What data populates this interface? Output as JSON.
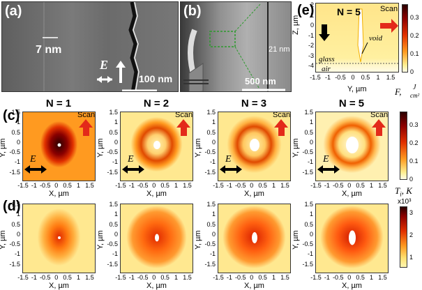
{
  "panel_a": {
    "label": "(a)",
    "scale_gap": "7 nm",
    "scalebar": "100 nm",
    "field_symbol": "E"
  },
  "panel_b": {
    "label": "(b)",
    "gap": "21 nm",
    "scalebar": "500 nm"
  },
  "panel_e": {
    "label": "(e)",
    "n": "N = 5",
    "scan": "Scan",
    "void": "void",
    "glass": "glass",
    "air": "air",
    "xlabel": "Y, µm",
    "ylabel": "Z, µm",
    "xticks": [
      "-1.5",
      "-1",
      "-0.5",
      "0",
      "0.5",
      "1",
      "1.5"
    ],
    "yticks": [
      "2",
      "1",
      "0",
      "-1",
      "-2",
      "-3",
      "-4"
    ]
  },
  "fluence_bar": {
    "ticks": [
      "0.3",
      "0.2",
      "0.1",
      "0"
    ],
    "label_main": "F,",
    "label_num": "J",
    "label_den": "cm²"
  },
  "temp_bar": {
    "ticks": [
      "0.3",
      "0.2",
      "0.1",
      "0"
    ],
    "label": "T",
    "label_sub": "i",
    "label_unit": ", K"
  },
  "temp_bar2": {
    "ticks": [
      "3",
      "2",
      "1"
    ],
    "exp": "x10³"
  },
  "row_c": {
    "label": "(c)",
    "scan": "Scan",
    "titles": [
      "N = 1",
      "N = 2",
      "N = 3",
      "N = 5"
    ]
  },
  "row_d": {
    "label": "(d)"
  },
  "axes": {
    "xlabel": "X, µm",
    "ylabel": "Y, µm",
    "xticks": [
      "-1.5",
      "-1",
      "-0.5",
      "0",
      "0.5",
      "1",
      "1.5"
    ],
    "yticks": [
      "1.5",
      "1",
      "0.5",
      "0",
      "-0.5",
      "-1",
      "-1.5"
    ]
  },
  "colors": {
    "hot_dark": "#3a0000",
    "hot_mid": "#d42a00",
    "hot_light": "#ff9a1e",
    "pale": "#fff3b0",
    "scan_arrow": "#e32a1a"
  }
}
